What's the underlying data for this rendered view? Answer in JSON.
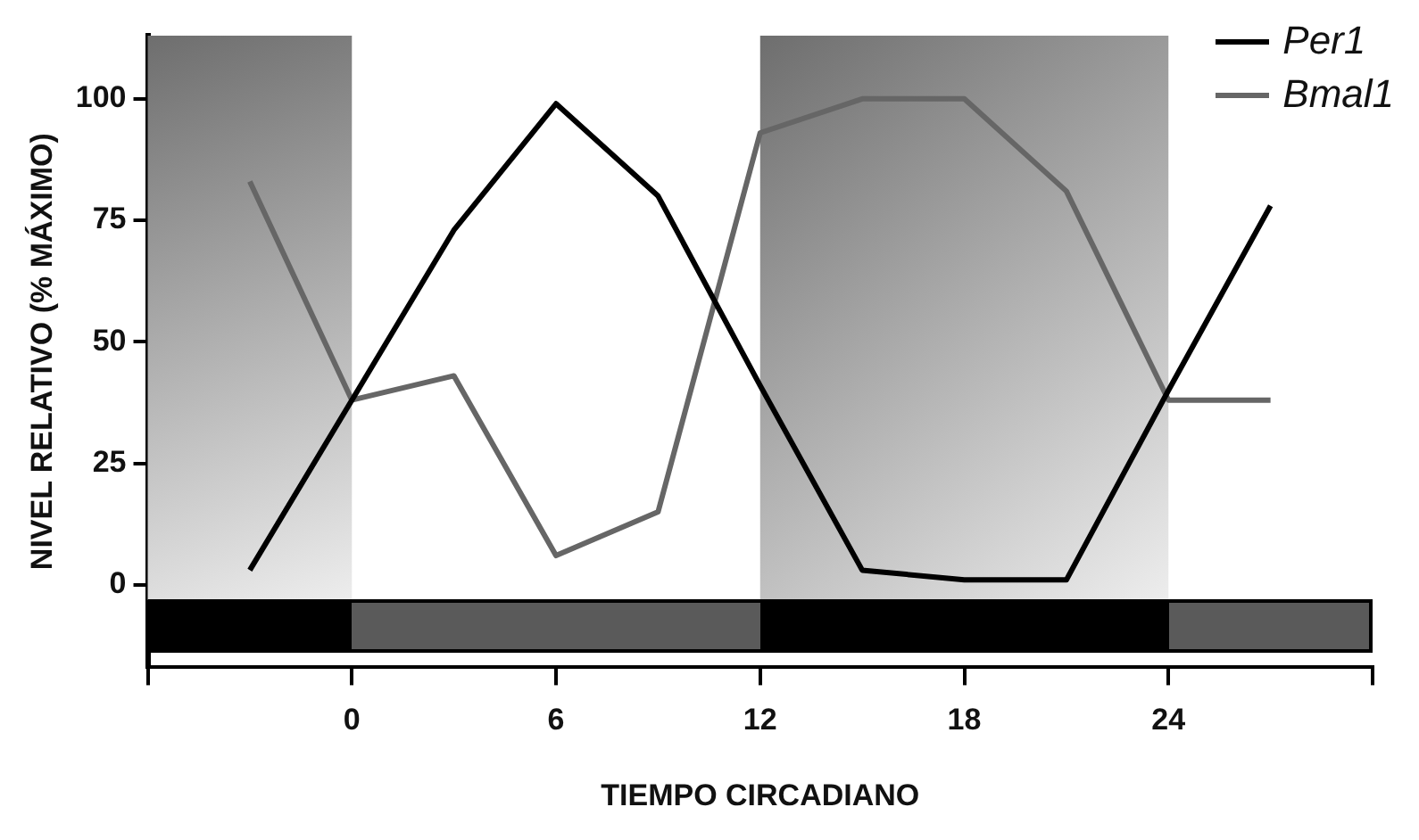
{
  "chart_data": {
    "type": "line",
    "xlabel": "TIEMPO CIRCADIANO",
    "ylabel": "NIVEL RELATIVO (% MÁXIMO)",
    "x": [
      -3,
      0,
      3,
      6,
      9,
      12,
      15,
      18,
      21,
      24,
      27
    ],
    "series": [
      {
        "name": "Per1",
        "color": "#000000",
        "values": [
          3,
          38,
          73,
          99,
          80,
          41,
          3,
          1,
          1,
          40,
          78
        ]
      },
      {
        "name": "Bmal1",
        "color": "#666666",
        "values": [
          83,
          38,
          43,
          6,
          15,
          93,
          100,
          100,
          81,
          38,
          38
        ]
      }
    ],
    "xlim": [
      -6,
      30
    ],
    "xticks": [
      {
        "value": -6,
        "label": null
      },
      0,
      6,
      12,
      18,
      24,
      {
        "value": 30,
        "label": null
      }
    ],
    "ylim": [
      -17,
      113
    ],
    "yticks": [
      0,
      25,
      50,
      75,
      100
    ],
    "bands": [
      {
        "axis": "x",
        "from": -6,
        "to": 0,
        "color": "#6e6e6e"
      },
      {
        "axis": "x",
        "from": 12,
        "to": 24,
        "color": "#6e6e6e"
      }
    ],
    "grid": false,
    "legend": "top right",
    "marker": "none",
    "line_style": "solid"
  }
}
